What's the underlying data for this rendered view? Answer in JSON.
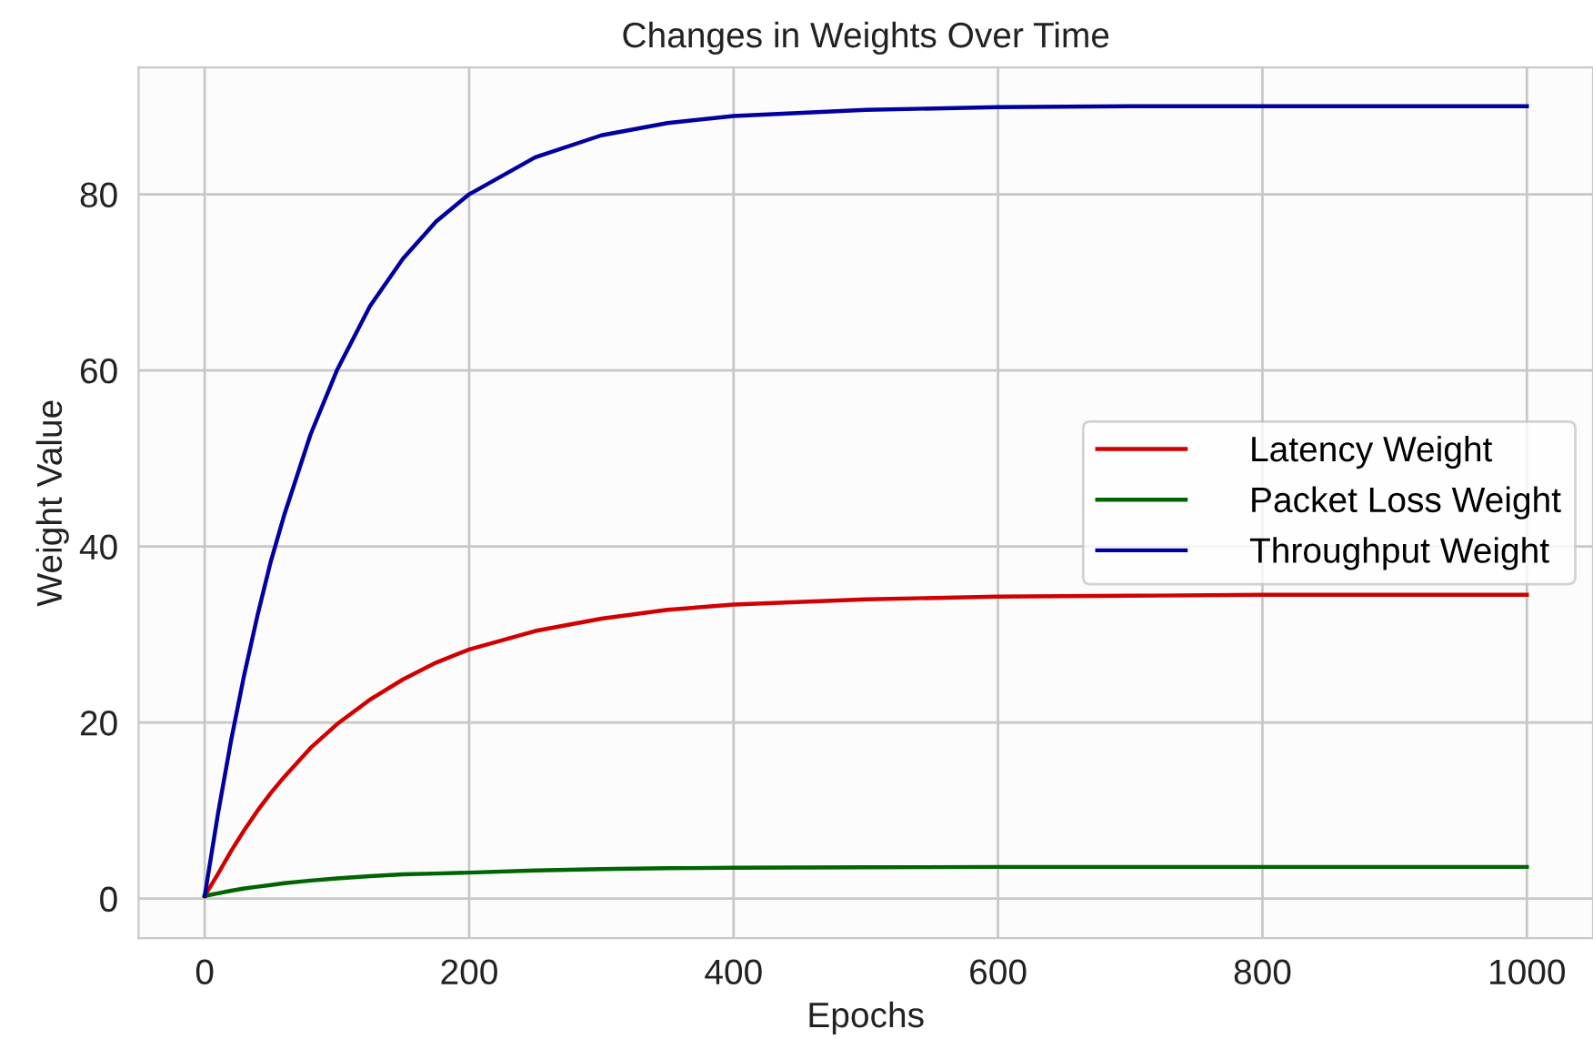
{
  "chart_data": {
    "type": "line",
    "title": "Changes in Weights Over Time",
    "xlabel": "Epochs",
    "ylabel": "Weight Value",
    "x": [
      0,
      10,
      20,
      30,
      40,
      50,
      60,
      80,
      100,
      125,
      150,
      175,
      200,
      250,
      300,
      350,
      400,
      500,
      600,
      700,
      800,
      900,
      1000
    ],
    "series": [
      {
        "name": "Latency Weight",
        "color": "#d00000",
        "values": [
          0.3,
          2.8,
          5.4,
          7.8,
          10,
          12,
          13.8,
          17.1,
          19.8,
          22.6,
          24.9,
          26.8,
          28.3,
          30.4,
          31.8,
          32.8,
          33.4,
          34,
          34.3,
          34.4,
          34.5,
          34.5,
          34.5
        ]
      },
      {
        "name": "Packet Loss Weight",
        "color": "#006400",
        "values": [
          0.3,
          0.6,
          0.9,
          1.15,
          1.35,
          1.55,
          1.75,
          2.05,
          2.3,
          2.55,
          2.75,
          2.85,
          2.95,
          3.2,
          3.35,
          3.45,
          3.5,
          3.55,
          3.6,
          3.6,
          3.6,
          3.6,
          3.6
        ]
      },
      {
        "name": "Throughput Weight",
        "color": "#0000a0",
        "values": [
          0.3,
          9.6,
          18,
          25.5,
          32.2,
          38.3,
          43.5,
          52.7,
          60,
          67.3,
          72.7,
          76.9,
          80,
          84.2,
          86.7,
          88.1,
          88.9,
          89.6,
          89.9,
          90,
          90,
          90,
          90
        ]
      }
    ],
    "xlim": [
      -50,
      1050
    ],
    "ylim": [
      -4.5,
      94.4
    ],
    "xticks": [
      0,
      200,
      400,
      600,
      800,
      1000
    ],
    "yticks": [
      0,
      20,
      40,
      60,
      80
    ],
    "grid": true,
    "legend": "right",
    "marker": "none",
    "line_style": "solid"
  }
}
